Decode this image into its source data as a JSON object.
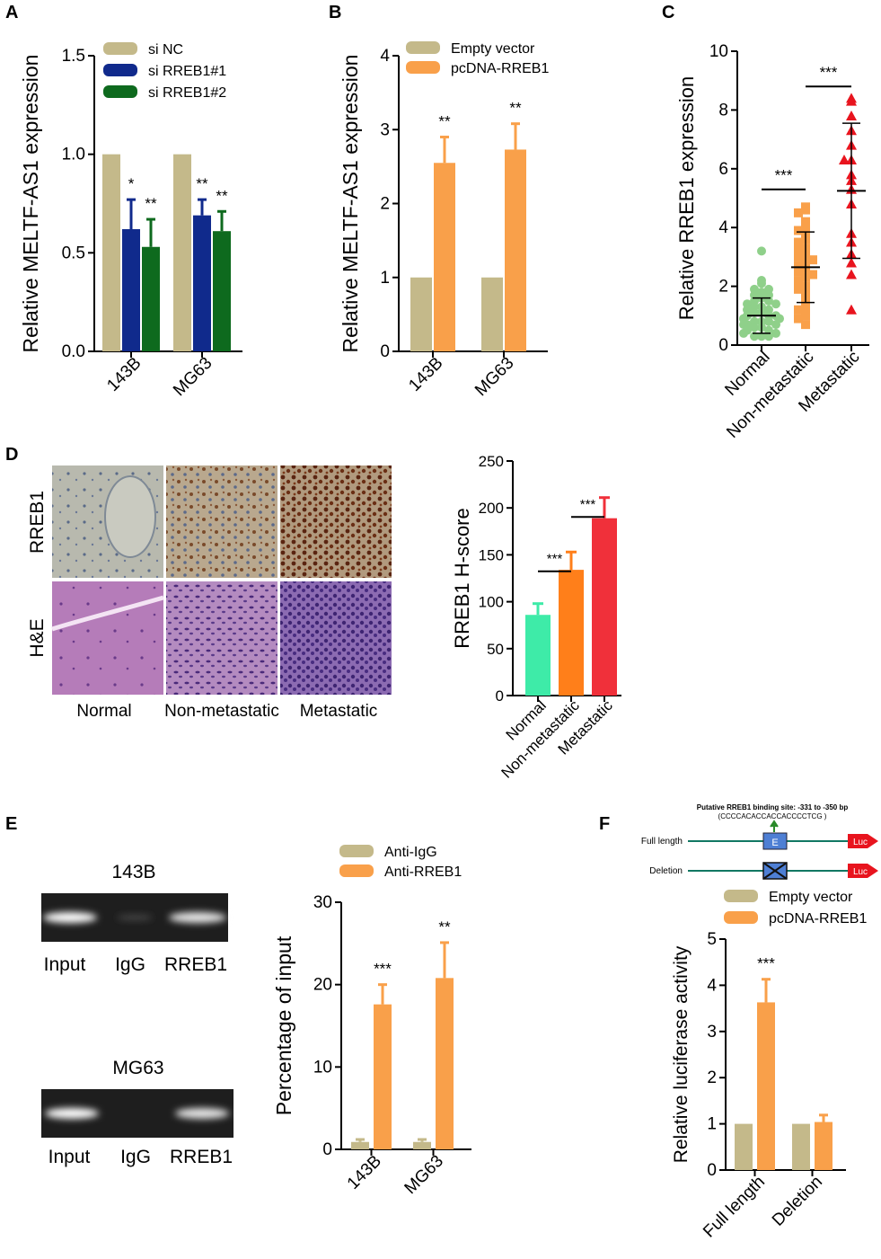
{
  "colors": {
    "khaki": "#C4B98A",
    "navy": "#102A8C",
    "green": "#0E6A1E",
    "orange": "#F9A04A",
    "lightgreen": "#8FD08A",
    "red": "#E8141E",
    "mint": "#3EEBA8",
    "darkorange": "#FF7F1A",
    "redbar": "#F0303A",
    "teal": "#127863",
    "lucred": "#E8141E",
    "eblue": "#4E7FD4"
  },
  "panel_letters": {
    "A": "A",
    "B": "B",
    "C": "C",
    "D": "D",
    "E": "E",
    "F": "F"
  },
  "panel_d": {
    "row_labels": [
      "RREB1",
      "H&E"
    ],
    "col_labels": [
      "Normal",
      "Non-metastatic",
      "Metastatic"
    ]
  },
  "panel_e": {
    "gels": [
      {
        "title": "143B",
        "lanes": [
          "Input",
          "IgG",
          "RREB1"
        ]
      },
      {
        "title": "MG63",
        "lanes": [
          "Input",
          "IgG",
          "RREB1"
        ]
      }
    ]
  },
  "panel_f": {
    "site_title": "Putative RREB1 binding site: -331 to -350 bp",
    "site_seq": "(CCCCACACCACCACCCCTCG )",
    "constructs": [
      "Full length",
      "Deletion"
    ],
    "element_label": "E",
    "luc_label": "Luc"
  },
  "chart_data": [
    {
      "panel": "A",
      "type": "bar",
      "ylabel": "Relative MELTF-AS1 expression",
      "ylim": [
        0,
        1.5
      ],
      "yticks": [
        0.0,
        0.5,
        1.0,
        1.5
      ],
      "ytick_labels": [
        "0.0",
        "0.5",
        "1.0",
        "1.5"
      ],
      "categories": [
        "143B",
        "MG63"
      ],
      "series": [
        {
          "name": "si NC",
          "color": "khaki",
          "values": [
            1.0,
            1.0
          ],
          "errors": [
            0,
            0
          ],
          "sig": [
            "",
            ""
          ]
        },
        {
          "name": "si RREB1#1",
          "color": "navy",
          "values": [
            0.62,
            0.69
          ],
          "errors": [
            0.15,
            0.08
          ],
          "sig": [
            "*",
            "**"
          ]
        },
        {
          "name": "si RREB1#2",
          "color": "green",
          "values": [
            0.53,
            0.61
          ],
          "errors": [
            0.14,
            0.1
          ],
          "sig": [
            "**",
            "**"
          ]
        }
      ],
      "legend": "top-left"
    },
    {
      "panel": "B",
      "type": "bar",
      "ylabel": "Relative MELTF-AS1 expression",
      "ylim": [
        0,
        4
      ],
      "yticks": [
        0,
        1,
        2,
        3,
        4
      ],
      "ytick_labels": [
        "0",
        "1",
        "2",
        "3",
        "4"
      ],
      "categories": [
        "143B",
        "MG63"
      ],
      "series": [
        {
          "name": "Empty vector",
          "color": "khaki",
          "values": [
            1.0,
            1.0
          ],
          "errors": [
            0,
            0
          ],
          "sig": [
            "",
            ""
          ]
        },
        {
          "name": "pcDNA-RREB1",
          "color": "orange",
          "values": [
            2.55,
            2.73
          ],
          "errors": [
            0.35,
            0.35
          ],
          "sig": [
            "**",
            "**"
          ]
        }
      ],
      "legend": "top-left"
    },
    {
      "panel": "C",
      "type": "scatter",
      "ylabel": "Relative RREB1 expression",
      "ylim": [
        0,
        10
      ],
      "yticks": [
        0,
        2,
        4,
        6,
        8,
        10
      ],
      "ytick_labels": [
        "0",
        "2",
        "4",
        "6",
        "8",
        "10"
      ],
      "categories": [
        "Normal",
        "Non-metastatic",
        "Metastatic"
      ],
      "groups": [
        {
          "name": "Normal",
          "color": "lightgreen",
          "shape": "circle",
          "mean": 1.0,
          "sd": 0.6,
          "values": [
            3.2,
            2.2,
            2.1,
            1.9,
            1.9,
            1.8,
            1.7,
            1.7,
            1.6,
            1.5,
            1.5,
            1.4,
            1.4,
            1.3,
            1.3,
            1.2,
            1.2,
            1.1,
            1.1,
            1.0,
            1.0,
            1.0,
            0.9,
            0.9,
            0.9,
            0.8,
            0.8,
            0.8,
            0.7,
            0.7,
            0.7,
            0.6,
            0.6,
            0.5,
            0.5,
            0.4,
            0.4,
            0.3,
            0.3,
            0.3
          ]
        },
        {
          "name": "Non-metastatic",
          "color": "orange",
          "shape": "square",
          "mean": 2.65,
          "sd": 1.2,
          "values": [
            4.7,
            4.6,
            4.5,
            4.2,
            4.0,
            3.9,
            3.7,
            3.6,
            3.5,
            3.3,
            3.2,
            3.1,
            3.0,
            2.9,
            2.8,
            2.7,
            2.6,
            2.5,
            2.4,
            2.3,
            2.2,
            2.0,
            1.9,
            1.7,
            1.5,
            1.3,
            1.2,
            1.0,
            0.9,
            0.7
          ]
        },
        {
          "name": "Metastatic",
          "color": "red",
          "shape": "triangle",
          "mean": 5.25,
          "sd": 2.3,
          "values": [
            8.4,
            8.3,
            7.8,
            7.3,
            6.8,
            6.3,
            6.3,
            5.8,
            5.6,
            5.3,
            4.8,
            3.8,
            3.5,
            3.1,
            2.8,
            2.4,
            1.2
          ]
        }
      ],
      "comparisons": [
        {
          "from": 0,
          "to": 1,
          "y": 5.3,
          "sig": "***"
        },
        {
          "from": 1,
          "to": 2,
          "y": 8.8,
          "sig": "***"
        }
      ]
    },
    {
      "panel": "D",
      "type": "bar",
      "ylabel": "RREB1 H-score",
      "ylim": [
        0,
        250
      ],
      "yticks": [
        0,
        50,
        100,
        150,
        200,
        250
      ],
      "ytick_labels": [
        "0",
        "50",
        "100",
        "150",
        "200",
        "250"
      ],
      "categories": [
        "Normal",
        "Non-metastatic",
        "Metastatic"
      ],
      "values": [
        86,
        134,
        189
      ],
      "errors": [
        12,
        19,
        22
      ],
      "colors": [
        "mint",
        "darkorange",
        "redbar"
      ],
      "comparisons": [
        {
          "from": 0,
          "to": 1,
          "y": 165,
          "sig": "***"
        },
        {
          "from": 1,
          "to": 2,
          "y": 223,
          "sig": "***"
        }
      ]
    },
    {
      "panel": "E",
      "type": "bar",
      "ylabel": "Percentage of input",
      "ylim": [
        0,
        30
      ],
      "yticks": [
        0,
        10,
        20,
        30
      ],
      "ytick_labels": [
        "0",
        "10",
        "20",
        "30"
      ],
      "categories": [
        "143B",
        "MG63"
      ],
      "series": [
        {
          "name": "Anti-IgG",
          "color": "khaki",
          "values": [
            0.9,
            0.9
          ],
          "errors": [
            0.3,
            0.3
          ],
          "sig": [
            "",
            ""
          ]
        },
        {
          "name": "Anti-RREB1",
          "color": "orange",
          "values": [
            17.6,
            20.8
          ],
          "errors": [
            2.4,
            4.3
          ],
          "sig": [
            "***",
            "**"
          ]
        }
      ],
      "legend": "top-left"
    },
    {
      "panel": "F",
      "type": "bar",
      "ylabel": "Relative luciferase activity",
      "ylim": [
        0,
        5
      ],
      "yticks": [
        0,
        1,
        2,
        3,
        4,
        5
      ],
      "ytick_labels": [
        "0",
        "1",
        "2",
        "3",
        "4",
        "5"
      ],
      "categories": [
        "Full length",
        "Deletion"
      ],
      "series": [
        {
          "name": "Empty vector",
          "color": "khaki",
          "values": [
            1.0,
            1.0
          ],
          "errors": [
            0,
            0
          ],
          "sig": [
            "",
            ""
          ]
        },
        {
          "name": "pcDNA-RREB1",
          "color": "orange",
          "values": [
            3.63,
            1.04
          ],
          "errors": [
            0.5,
            0.15
          ],
          "sig": [
            "***",
            ""
          ]
        }
      ],
      "legend": "top-left"
    }
  ]
}
